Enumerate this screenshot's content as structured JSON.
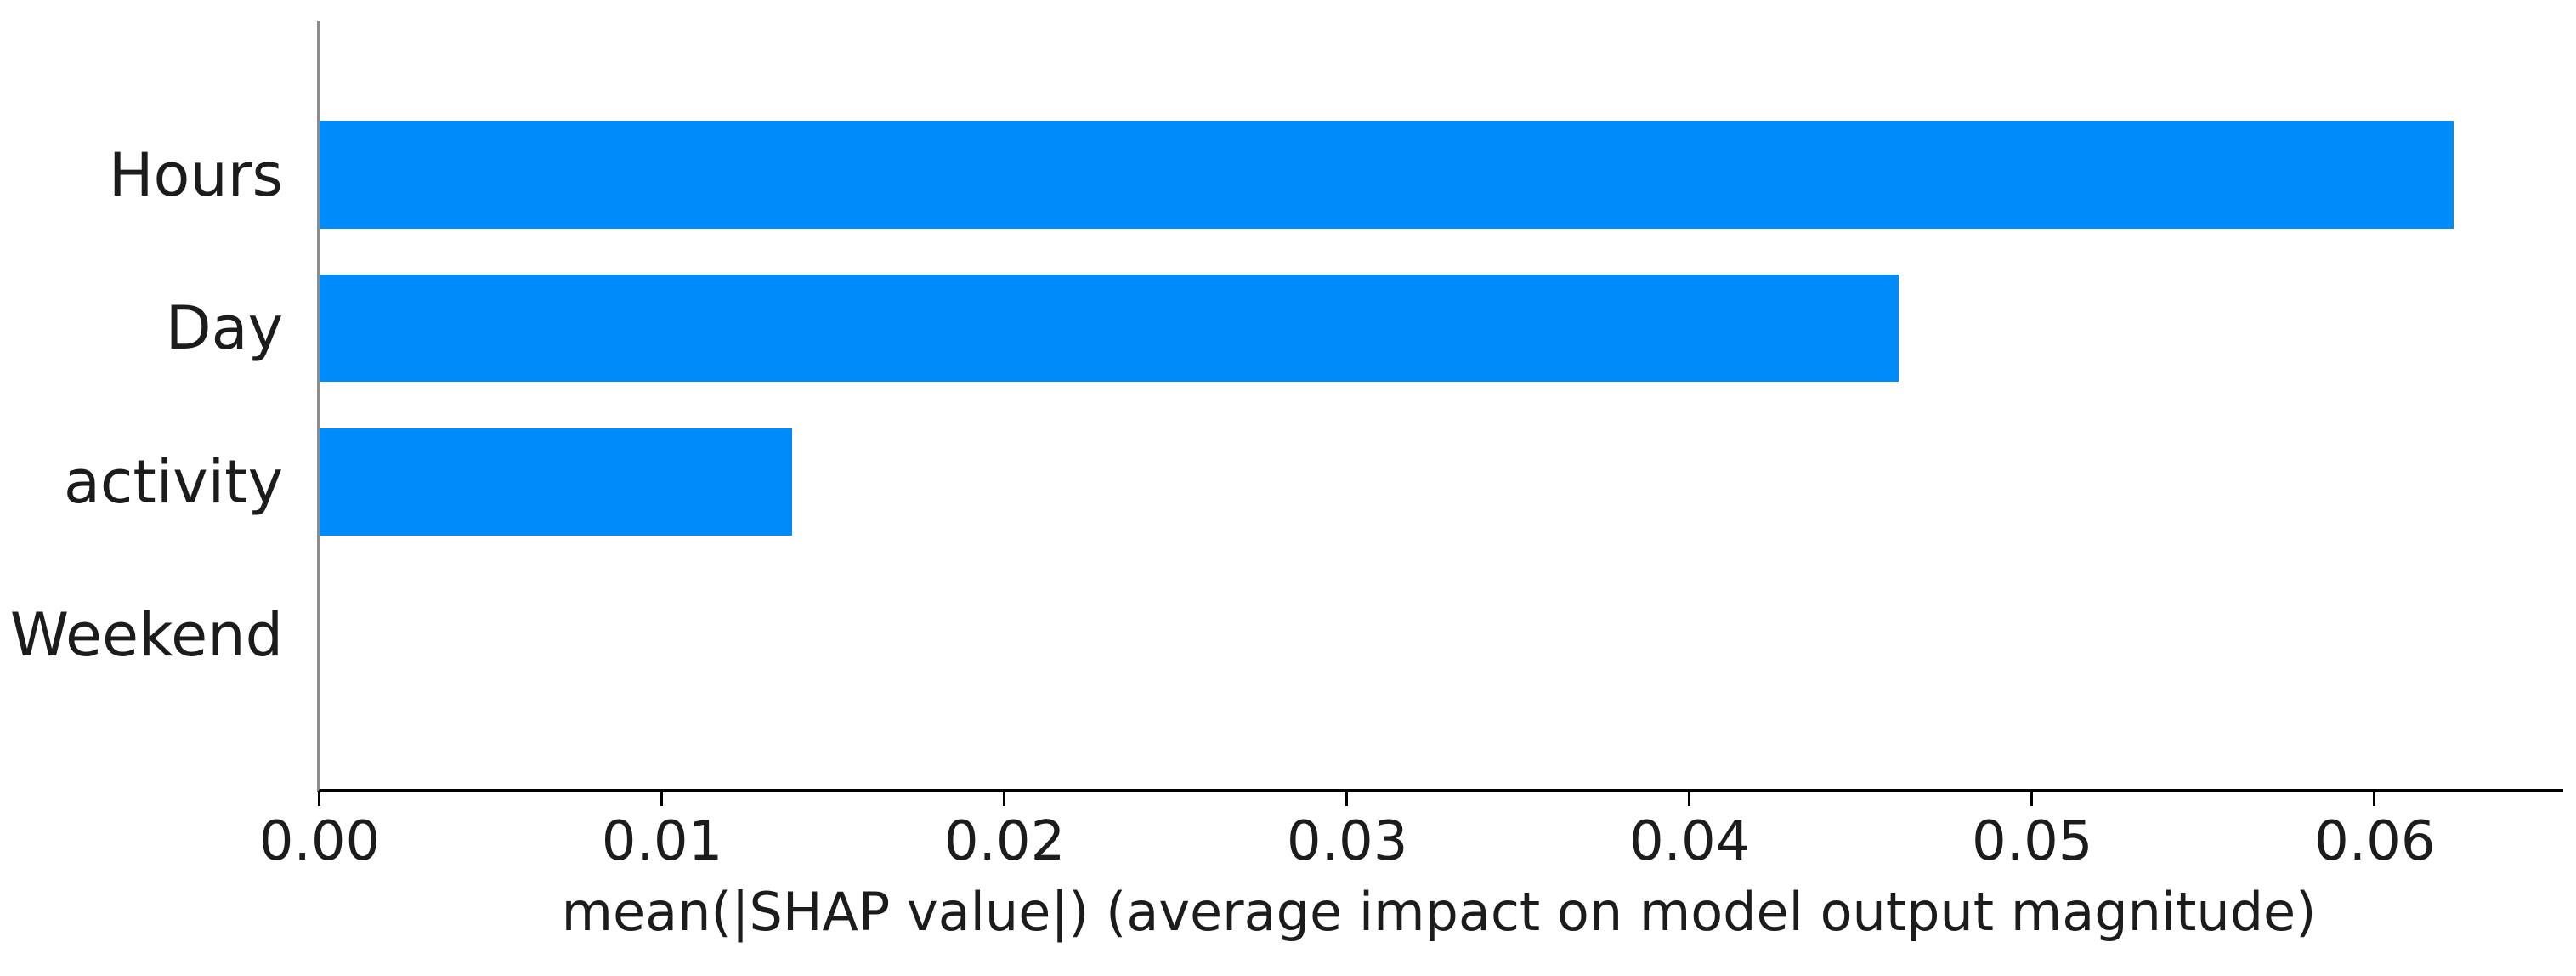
{
  "chart_data": {
    "type": "bar",
    "orientation": "horizontal",
    "title": "",
    "xlabel": "mean(|SHAP value|) (average impact on model output magnitude)",
    "ylabel": "",
    "categories": [
      "Hours",
      "Day",
      "activity",
      "Weekend"
    ],
    "values": [
      0.0623,
      0.0461,
      0.0138,
      0.0
    ],
    "xlim": [
      0,
      0.0655
    ],
    "xticks": [
      {
        "value": 0.0,
        "label": "0.00"
      },
      {
        "value": 0.01,
        "label": "0.01"
      },
      {
        "value": 0.02,
        "label": "0.02"
      },
      {
        "value": 0.03,
        "label": "0.03"
      },
      {
        "value": 0.04,
        "label": "0.04"
      },
      {
        "value": 0.05,
        "label": "0.05"
      },
      {
        "value": 0.06,
        "label": "0.06"
      }
    ],
    "grid": false,
    "legend": null,
    "bar_color": "#008bfb",
    "left_spine_color": "#8c8c8c",
    "bottom_spine_color": "#000000",
    "tick_color": "#000000",
    "text_color": "#1c1c1c"
  }
}
